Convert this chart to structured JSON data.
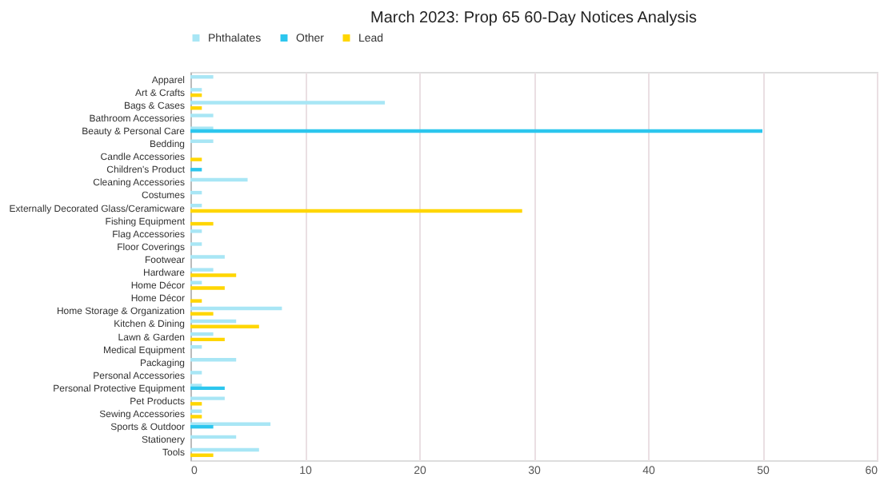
{
  "chart_data": {
    "type": "bar",
    "orientation": "horizontal",
    "title": "March 2023: Prop 65 60-Day Notices Analysis",
    "categories": [
      "Apparel",
      "Art & Crafts",
      "Bags & Cases",
      "Bathroom Accessories",
      "Beauty & Personal Care",
      "Bedding",
      "Candle Accessories",
      "Children's Product",
      "Cleaning Accessories",
      "Costumes",
      "Externally Decorated Glass/Ceramicware",
      "Fishing Equipment",
      "Flag Accessories",
      "Floor Coverings",
      "Footwear",
      "Hardware",
      "Home Décor",
      "Home Décor",
      "Home Storage & Organization",
      "Kitchen & Dining",
      "Lawn & Garden",
      "Medical Equipment",
      "Packaging",
      "Personal Accessories",
      "Personal Protective Equipment",
      "Pet Products",
      "Sewing Accessories",
      "Sports & Outdoor",
      "Stationery",
      "Tools"
    ],
    "series": [
      {
        "name": "Phthalates",
        "color": "#a8e6f5",
        "values": [
          2,
          1,
          17,
          2,
          2,
          2,
          null,
          null,
          5,
          1,
          1,
          null,
          1,
          1,
          3,
          2,
          1,
          null,
          8,
          4,
          2,
          1,
          4,
          1,
          1,
          3,
          1,
          7,
          4,
          6
        ]
      },
      {
        "name": "Other",
        "color": "#2cc6ee",
        "values": [
          null,
          null,
          null,
          null,
          50,
          null,
          null,
          1,
          null,
          null,
          null,
          null,
          null,
          null,
          null,
          null,
          null,
          null,
          null,
          null,
          null,
          null,
          null,
          null,
          3,
          null,
          null,
          2,
          null,
          null
        ]
      },
      {
        "name": "Lead",
        "color": "#ffd600",
        "values": [
          null,
          1,
          1,
          null,
          null,
          null,
          1,
          null,
          null,
          null,
          29,
          2,
          null,
          null,
          null,
          4,
          3,
          1,
          2,
          6,
          3,
          null,
          null,
          null,
          null,
          1,
          1,
          null,
          null,
          2
        ]
      }
    ],
    "xlim": [
      0,
      60
    ],
    "xticks": [
      0,
      10,
      20,
      30,
      40,
      50,
      60
    ],
    "grid": "x",
    "legend": "top"
  }
}
